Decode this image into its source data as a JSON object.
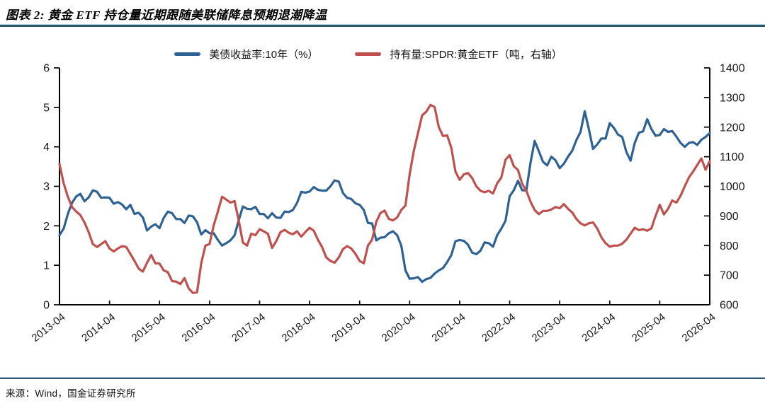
{
  "figure": {
    "title": "图表 2:  黄金 ETF 持仓量近期跟随美联储降息预期退潮降温",
    "source": "来源：Wind，国金证券研究所",
    "accent_rule_color": "#2d5470",
    "background": "#ffffff"
  },
  "chart_data": {
    "type": "line",
    "title": "",
    "x_frequency": "monthly",
    "x_range": [
      "2013-04",
      "2026-04"
    ],
    "x_tick_labels": [
      "2013-04",
      "2014-04",
      "2015-04",
      "2016-04",
      "2017-04",
      "2018-04",
      "2019-04",
      "2020-04",
      "2021-04",
      "2022-04",
      "2023-04",
      "2024-04",
      "2025-04",
      "2026-04"
    ],
    "left_axis": {
      "min": 0,
      "max": 6,
      "step": 1,
      "side": "left"
    },
    "right_axis": {
      "min": 600,
      "max": 1400,
      "step": 100,
      "side": "right"
    },
    "grid": false,
    "legend_position": "top-center",
    "axis_color": "#000000",
    "series": [
      {
        "name": "美债收益率:10年（%）",
        "axis": "left",
        "color": "#2E6194",
        "values": [
          1.76,
          1.93,
          2.3,
          2.58,
          2.74,
          2.81,
          2.62,
          2.72,
          2.9,
          2.86,
          2.71,
          2.72,
          2.71,
          2.56,
          2.6,
          2.54,
          2.42,
          2.53,
          2.3,
          2.33,
          2.21,
          1.88,
          1.98,
          2.04,
          1.94,
          2.2,
          2.36,
          2.32,
          2.17,
          2.17,
          2.07,
          2.26,
          2.24,
          2.09,
          1.78,
          1.89,
          1.81,
          1.81,
          1.64,
          1.5,
          1.56,
          1.63,
          1.76,
          2.14,
          2.49,
          2.43,
          2.42,
          2.48,
          2.3,
          2.3,
          2.19,
          2.32,
          2.21,
          2.2,
          2.36,
          2.35,
          2.4,
          2.58,
          2.86,
          2.84,
          2.87,
          2.98,
          2.91,
          2.89,
          2.89,
          3.0,
          3.15,
          3.12,
          2.83,
          2.71,
          2.68,
          2.57,
          2.53,
          2.4,
          2.07,
          2.06,
          1.63,
          1.7,
          1.71,
          1.81,
          1.86,
          1.76,
          1.5,
          0.87,
          0.66,
          0.67,
          0.7,
          0.58,
          0.65,
          0.68,
          0.79,
          0.87,
          0.93,
          1.08,
          1.26,
          1.61,
          1.64,
          1.62,
          1.52,
          1.32,
          1.28,
          1.37,
          1.58,
          1.56,
          1.47,
          1.76,
          1.93,
          2.13,
          2.75,
          2.9,
          3.14,
          2.9,
          2.9,
          3.6,
          4.15,
          3.89,
          3.62,
          3.53,
          3.75,
          3.66,
          3.46,
          3.57,
          3.75,
          3.9,
          4.17,
          4.38,
          4.9,
          4.45,
          3.95,
          4.06,
          4.21,
          4.21,
          4.6,
          4.48,
          4.31,
          4.25,
          3.87,
          3.65,
          4.1,
          4.36,
          4.39,
          4.7,
          4.45,
          4.28,
          4.3,
          4.45,
          4.38,
          4.4,
          4.26,
          4.1,
          4.0,
          4.1,
          4.12,
          4.05,
          4.18,
          4.25,
          4.35
        ]
      },
      {
        "name": "持有量:SPDR:黄金ETF（吨，右轴）",
        "axis": "right",
        "color": "#C0504D",
        "values": [
          1075,
          1010,
          965,
          930,
          915,
          903,
          878,
          845,
          805,
          795,
          805,
          815,
          790,
          780,
          790,
          798,
          795,
          772,
          748,
          722,
          712,
          742,
          768,
          740,
          739,
          716,
          710,
          680,
          678,
          670,
          690,
          655,
          640,
          642,
          740,
          800,
          805,
          868,
          915,
          965,
          955,
          945,
          950,
          885,
          810,
          800,
          840,
          835,
          855,
          848,
          840,
          792,
          815,
          845,
          853,
          843,
          838,
          848,
          830,
          846,
          860,
          850,
          820,
          795,
          760,
          748,
          742,
          760,
          788,
          798,
          790,
          772,
          748,
          740,
          800,
          820,
          880,
          910,
          918,
          890,
          885,
          895,
          920,
          935,
          1040,
          1120,
          1180,
          1240,
          1252,
          1275,
          1268,
          1200,
          1170,
          1172,
          1130,
          1050,
          1022,
          1040,
          1045,
          1028,
          1000,
          985,
          980,
          985,
          976,
          1010,
          1030,
          1090,
          1105,
          1068,
          1055,
          1008,
          985,
          948,
          920,
          906,
          917,
          917,
          922,
          930,
          926,
          940,
          924,
          912,
          890,
          875,
          868,
          875,
          878,
          858,
          828,
          808,
          796,
          800,
          800,
          806,
          820,
          840,
          860,
          852,
          855,
          850,
          858,
          900,
          938,
          905,
          924,
          952,
          945,
          968,
          1000,
          1030,
          1050,
          1072,
          1094,
          1056,
          1085
        ]
      }
    ]
  }
}
